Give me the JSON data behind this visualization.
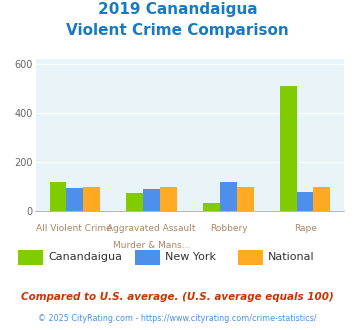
{
  "title_line1": "2019 Canandaigua",
  "title_line2": "Violent Crime Comparison",
  "title_color": "#1a7abf",
  "cat_labels_top": [
    "",
    "Aggravated Assault",
    "",
    ""
  ],
  "cat_labels_bot": [
    "All Violent Crime",
    "Murder & Mans...",
    "Robbery",
    "Rape"
  ],
  "canandaigua": [
    120,
    75,
    35,
    510
  ],
  "new_york": [
    95,
    90,
    118,
    80
  ],
  "national": [
    100,
    100,
    100,
    100
  ],
  "colors": {
    "canandaigua": "#80cc00",
    "new_york": "#4d8fea",
    "national": "#ffaa22"
  },
  "ylim": [
    0,
    620
  ],
  "yticks": [
    0,
    200,
    400,
    600
  ],
  "plot_bg": "#e8f4f8",
  "legend_labels": [
    "Canandaigua",
    "New York",
    "National"
  ],
  "footnote1": "Compared to U.S. average. (U.S. average equals 100)",
  "footnote2": "© 2025 CityRating.com - https://www.cityrating.com/crime-statistics/",
  "footnote1_color": "#cc3300",
  "footnote2_color": "#4d8fea"
}
